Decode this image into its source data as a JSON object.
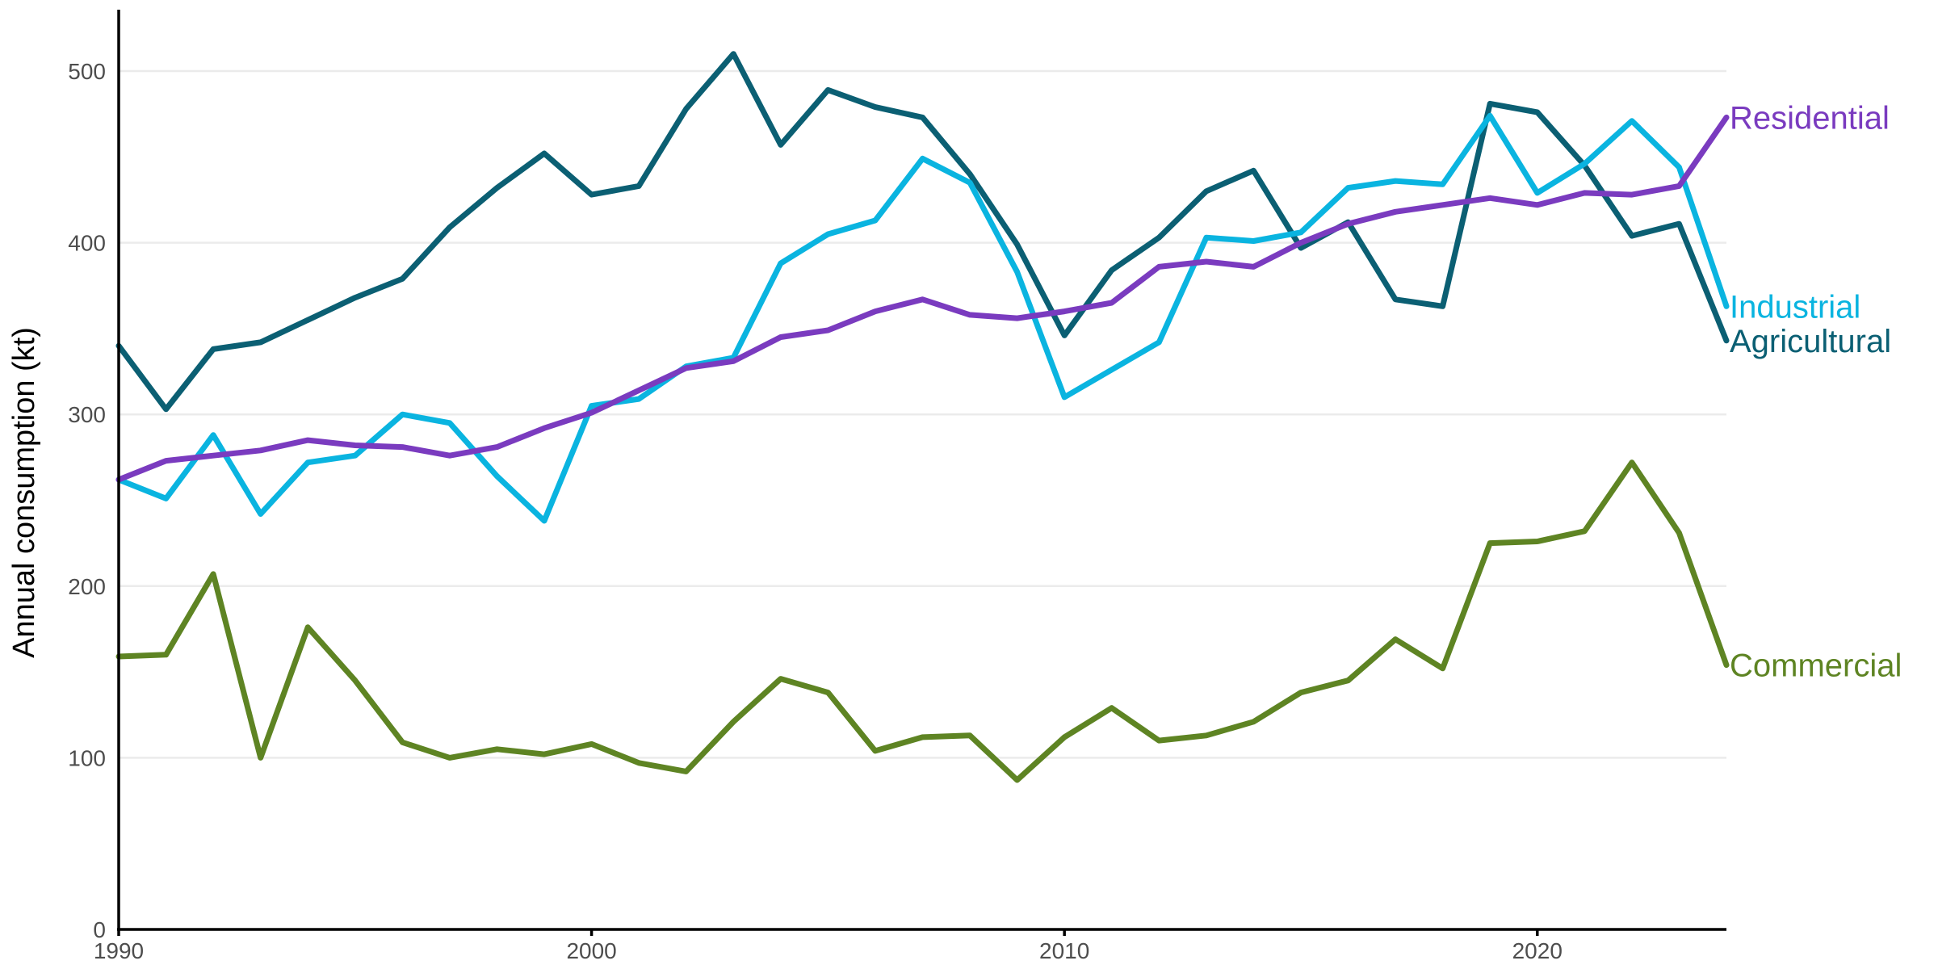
{
  "chart_data": {
    "type": "line",
    "title": "",
    "xlabel": "",
    "ylabel": "Annual consumption (kt)",
    "xlim": [
      1990,
      2024
    ],
    "ylim": [
      0,
      535
    ],
    "x_ticks": [
      1990,
      2000,
      2010,
      2020
    ],
    "y_ticks": [
      0,
      100,
      200,
      300,
      400,
      500
    ],
    "grid": "horizontal-major",
    "legend": "direct labels at line ends (right)",
    "x": [
      1990,
      1991,
      1992,
      1993,
      1994,
      1995,
      1996,
      1997,
      1998,
      1999,
      2000,
      2001,
      2002,
      2003,
      2004,
      2005,
      2006,
      2007,
      2008,
      2009,
      2010,
      2011,
      2012,
      2013,
      2014,
      2015,
      2016,
      2017,
      2018,
      2019,
      2020,
      2021,
      2022,
      2023,
      2024
    ],
    "series": [
      {
        "name": "Agricultural",
        "color": "#0b5f73",
        "values": [
          340,
          303,
          338,
          342,
          355,
          368,
          379,
          409,
          432,
          452,
          428,
          433,
          478,
          510,
          457,
          489,
          479,
          473,
          440,
          399,
          346,
          384,
          403,
          430,
          442,
          397,
          412,
          367,
          363,
          481,
          476,
          445,
          404,
          411,
          343
        ]
      },
      {
        "name": "Industrial",
        "color": "#0ab4e0",
        "values": [
          262,
          251,
          288,
          242,
          272,
          276,
          300,
          295,
          264,
          238,
          305,
          309,
          328,
          333,
          388,
          405,
          413,
          449,
          435,
          383,
          310,
          326,
          342,
          403,
          401,
          406,
          432,
          436,
          434,
          474,
          429,
          446,
          471,
          444,
          363
        ]
      },
      {
        "name": "Residential",
        "color": "#7a3bbf",
        "values": [
          262,
          273,
          276,
          279,
          285,
          282,
          281,
          276,
          281,
          292,
          301,
          314,
          327,
          331,
          345,
          349,
          360,
          367,
          358,
          356,
          360,
          365,
          386,
          389,
          386,
          400,
          411,
          418,
          422,
          426,
          422,
          429,
          428,
          433,
          473
        ]
      },
      {
        "name": "Commercial",
        "color": "#5e8423",
        "values": [
          159,
          160,
          207,
          100,
          176,
          145,
          109,
          100,
          105,
          102,
          108,
          97,
          92,
          121,
          146,
          138,
          104,
          112,
          113,
          87,
          112,
          129,
          110,
          113,
          121,
          138,
          145,
          169,
          152,
          225,
          226,
          232,
          272,
          231,
          154
        ]
      }
    ]
  }
}
